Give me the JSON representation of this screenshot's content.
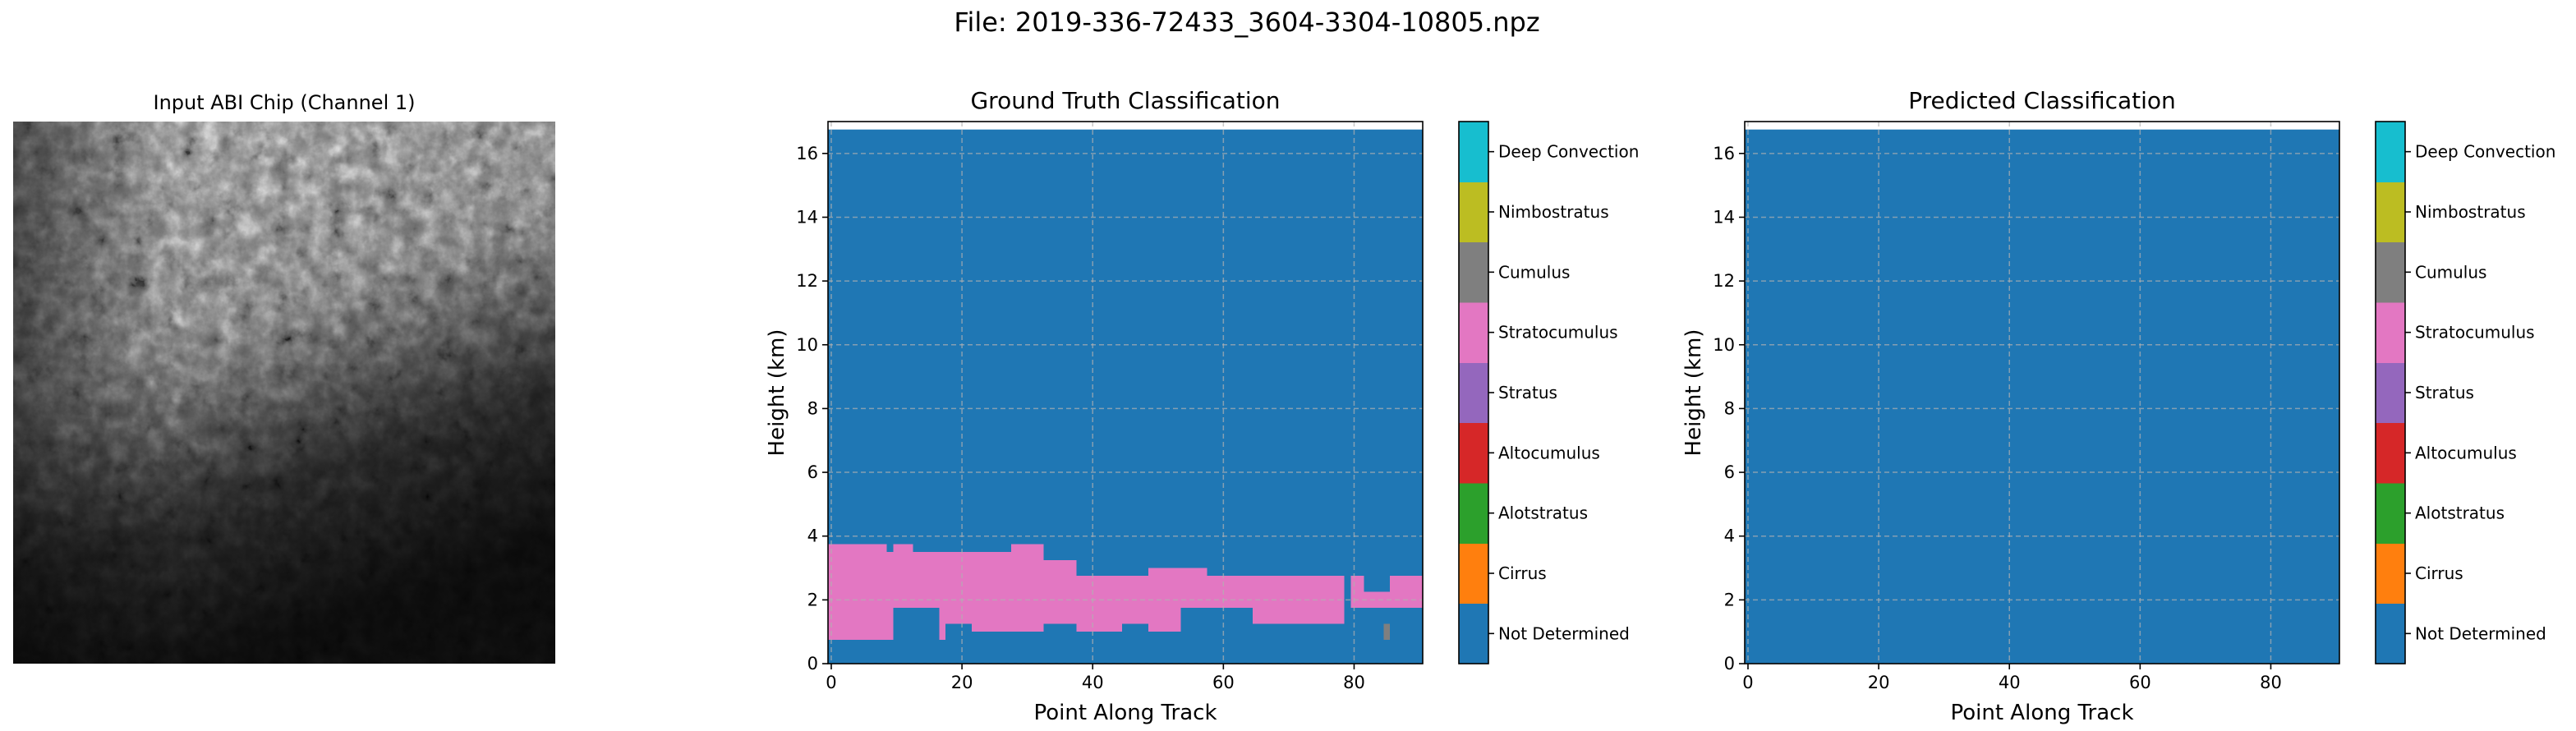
{
  "figure_title": "File: 2019-336-72433_3604-3304-10805.npz",
  "image_panel": {
    "title": "Input ABI Chip (Channel 1)"
  },
  "classes": [
    {
      "name": "Not Determined",
      "color": "#1f77b4"
    },
    {
      "name": "Cirrus",
      "color": "#ff7f0e"
    },
    {
      "name": "Alotstratus",
      "color": "#2ca02c"
    },
    {
      "name": "Altocumulus",
      "color": "#d62728"
    },
    {
      "name": "Stratus",
      "color": "#9467bd"
    },
    {
      "name": "Stratocumulus",
      "color": "#e377c2"
    },
    {
      "name": "Cumulus",
      "color": "#7f7f7f"
    },
    {
      "name": "Nimbostratus",
      "color": "#bcbd22"
    },
    {
      "name": "Deep Convection",
      "color": "#17becf"
    }
  ],
  "chart_data": [
    {
      "type": "heatmap",
      "title": "Ground Truth Classification",
      "xlabel": "Point Along Track",
      "ylabel": "Height (km)",
      "xlim": [
        -0.5,
        90.5
      ],
      "ylim": [
        0,
        17
      ],
      "data_extent_y": [
        0,
        16.75
      ],
      "xticks": [
        0,
        20,
        40,
        60,
        80
      ],
      "yticks": [
        0,
        2,
        4,
        6,
        8,
        10,
        12,
        14,
        16
      ],
      "grid": true,
      "background_class": "Not Determined",
      "regions": [
        {
          "class": "Stratocumulus",
          "x": [
            0,
            8
          ],
          "y": [
            0.75,
            3.75
          ]
        },
        {
          "class": "Stratocumulus",
          "x": [
            9,
            9
          ],
          "y": [
            0.75,
            3.5
          ]
        },
        {
          "class": "Stratocumulus",
          "x": [
            10,
            12
          ],
          "y": [
            1.75,
            3.75
          ]
        },
        {
          "class": "Stratocumulus",
          "x": [
            13,
            16
          ],
          "y": [
            1.75,
            3.5
          ]
        },
        {
          "class": "Stratocumulus",
          "x": [
            17,
            17
          ],
          "y": [
            0.75,
            3.5
          ]
        },
        {
          "class": "Stratocumulus",
          "x": [
            18,
            21
          ],
          "y": [
            1.25,
            3.5
          ]
        },
        {
          "class": "Stratocumulus",
          "x": [
            22,
            27
          ],
          "y": [
            1.0,
            3.5
          ]
        },
        {
          "class": "Stratocumulus",
          "x": [
            28,
            32
          ],
          "y": [
            1.0,
            3.75
          ]
        },
        {
          "class": "Stratocumulus",
          "x": [
            33,
            37
          ],
          "y": [
            1.25,
            3.25
          ]
        },
        {
          "class": "Stratocumulus",
          "x": [
            38,
            44
          ],
          "y": [
            1.0,
            2.75
          ]
        },
        {
          "class": "Stratocumulus",
          "x": [
            45,
            48
          ],
          "y": [
            1.25,
            2.75
          ]
        },
        {
          "class": "Stratocumulus",
          "x": [
            49,
            53
          ],
          "y": [
            1.0,
            3.0
          ]
        },
        {
          "class": "Stratocumulus",
          "x": [
            54,
            57
          ],
          "y": [
            1.75,
            3.0
          ]
        },
        {
          "class": "Stratocumulus",
          "x": [
            58,
            64
          ],
          "y": [
            1.75,
            2.75
          ]
        },
        {
          "class": "Stratocumulus",
          "x": [
            65,
            78
          ],
          "y": [
            1.25,
            2.75
          ]
        },
        {
          "class": "Stratocumulus",
          "x": [
            80,
            81
          ],
          "y": [
            1.75,
            2.75
          ]
        },
        {
          "class": "Stratocumulus",
          "x": [
            82,
            85
          ],
          "y": [
            1.75,
            2.25
          ]
        },
        {
          "class": "Stratocumulus",
          "x": [
            86,
            90
          ],
          "y": [
            1.75,
            2.75
          ]
        },
        {
          "class": "Cumulus",
          "x": [
            85,
            85
          ],
          "y": [
            0.75,
            1.25
          ]
        }
      ],
      "colorbar_labels": [
        "Not Determined",
        "Cirrus",
        "Alotstratus",
        "Altocumulus",
        "Stratus",
        "Stratocumulus",
        "Cumulus",
        "Nimbostratus",
        "Deep Convection"
      ]
    },
    {
      "type": "heatmap",
      "title": "Predicted Classification",
      "xlabel": "Point Along Track",
      "ylabel": "Height (km)",
      "xlim": [
        -0.5,
        90.5
      ],
      "ylim": [
        0,
        17
      ],
      "data_extent_y": [
        0,
        16.75
      ],
      "xticks": [
        0,
        20,
        40,
        60,
        80
      ],
      "yticks": [
        0,
        2,
        4,
        6,
        8,
        10,
        12,
        14,
        16
      ],
      "grid": true,
      "background_class": "Not Determined",
      "regions": [],
      "colorbar_labels": [
        "Not Determined",
        "Cirrus",
        "Alotstratus",
        "Altocumulus",
        "Stratus",
        "Stratocumulus",
        "Cumulus",
        "Nimbostratus",
        "Deep Convection"
      ]
    }
  ]
}
